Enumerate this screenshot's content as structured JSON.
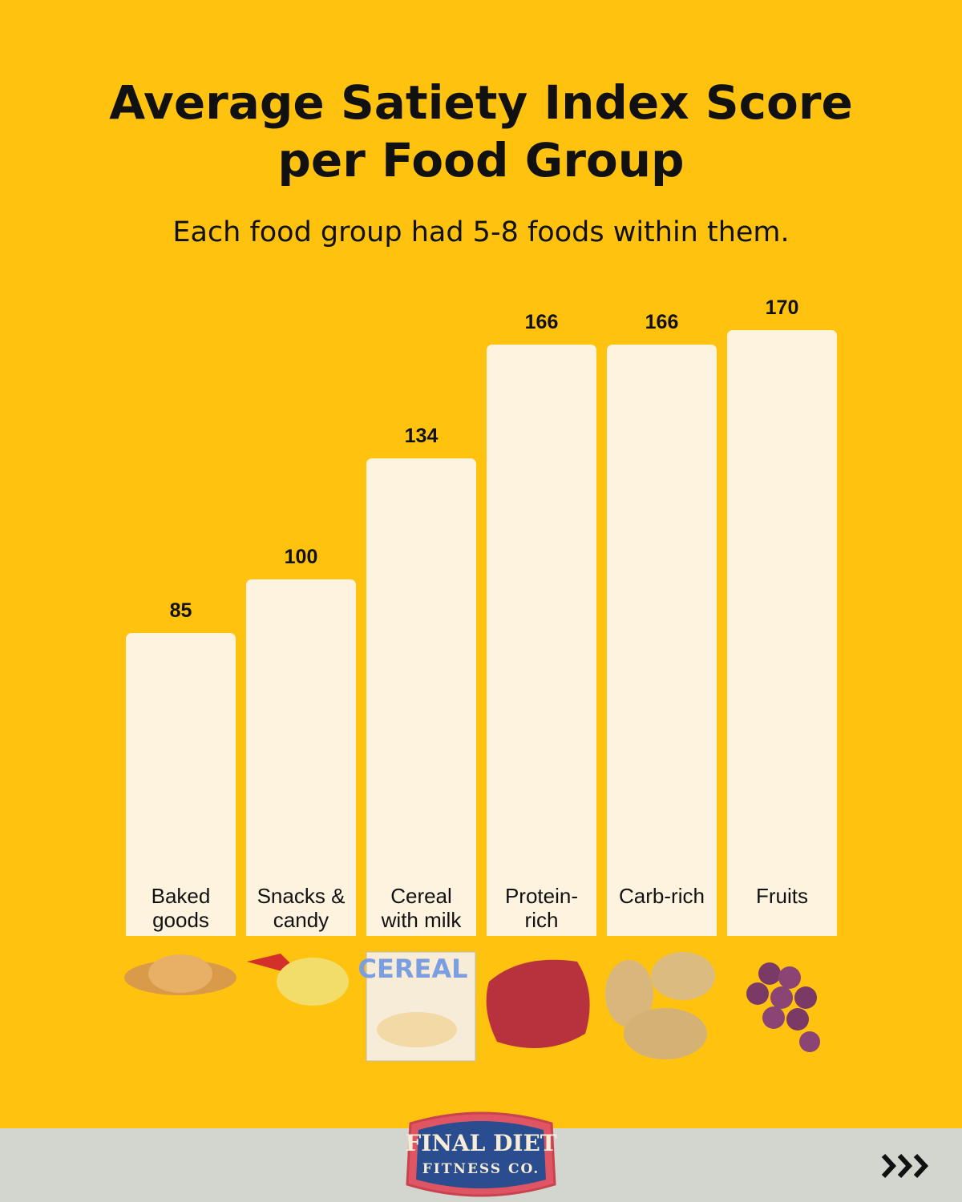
{
  "chart_data": {
    "type": "bar",
    "title": "Average Satiety Index Score per Food Group",
    "subtitle": "Each food group had 5-8 foods within them.",
    "categories": [
      "Baked goods",
      "Snacks & candy",
      "Cereal with milk",
      "Protein-rich",
      "Carb-rich",
      "Fruits"
    ],
    "values": [
      85,
      100,
      134,
      166,
      166,
      170
    ],
    "color": "#fdf3df"
  },
  "brand": {
    "line1": "FINAL DIET",
    "line2": "FITNESS CO."
  }
}
